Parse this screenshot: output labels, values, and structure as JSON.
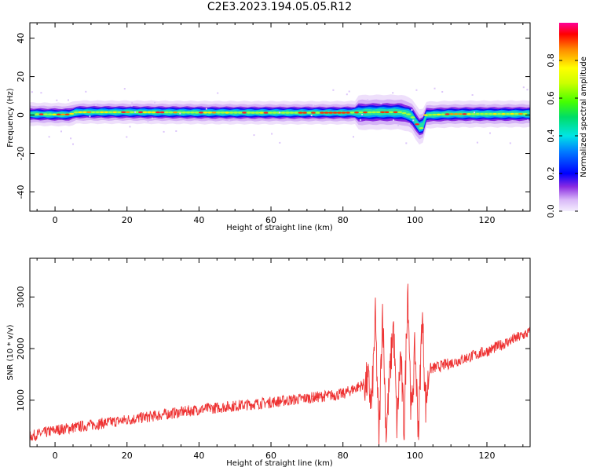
{
  "title": "C2E3.2023.194.05.05.R12",
  "chart_data": [
    {
      "type": "heatmap",
      "xlabel": "Height of straight line (km)",
      "ylabel": "Frequency (Hz)",
      "xlim": [
        -7,
        132
      ],
      "ylim": [
        -50,
        48
      ],
      "xticks": [
        0,
        20,
        40,
        60,
        80,
        100,
        120
      ],
      "yticks": [
        -40,
        -20,
        0,
        20,
        40
      ],
      "band_center_hz": [
        [
          -7,
          0.5
        ],
        [
          0,
          0.3
        ],
        [
          4,
          0.3
        ],
        [
          6,
          1.5
        ],
        [
          20,
          1.5
        ],
        [
          40,
          1.3
        ],
        [
          60,
          1.2
        ],
        [
          80,
          1.2
        ],
        [
          90,
          1.5
        ],
        [
          96,
          1.5
        ],
        [
          99,
          0
        ],
        [
          100,
          -3
        ],
        [
          101,
          -6
        ],
        [
          102,
          -7
        ],
        [
          103,
          0
        ],
        [
          110,
          0.5
        ],
        [
          132,
          0.6
        ]
      ],
      "colorbar": {
        "label": "Normalized spectral amplitude",
        "range": [
          0,
          1
        ],
        "ticks": [
          "0.0",
          "0.2",
          "0.4",
          "0.6",
          "0.8"
        ]
      }
    },
    {
      "type": "line",
      "xlabel": "Height of straight line (km)",
      "ylabel": "SNR (10 * v/v)",
      "xlim": [
        -7,
        132
      ],
      "ylim": [
        100,
        3750
      ],
      "xticks": [
        0,
        20,
        40,
        60,
        80,
        100,
        120
      ],
      "yticks": [
        1000,
        2000,
        3000
      ],
      "color": "#ee3333",
      "trend": [
        [
          -7,
          300
        ],
        [
          0,
          420
        ],
        [
          20,
          620
        ],
        [
          40,
          820
        ],
        [
          60,
          960
        ],
        [
          80,
          1120
        ],
        [
          87,
          1350
        ],
        [
          88,
          900
        ],
        [
          89,
          2600
        ],
        [
          90,
          200
        ],
        [
          91,
          2800
        ],
        [
          92,
          350
        ],
        [
          94,
          2500
        ],
        [
          95,
          500
        ],
        [
          96,
          1900
        ],
        [
          97,
          400
        ],
        [
          98,
          3300
        ],
        [
          99,
          600
        ],
        [
          100,
          2000
        ],
        [
          101,
          400
        ],
        [
          102,
          2700
        ],
        [
          103,
          900
        ],
        [
          104,
          1600
        ],
        [
          110,
          1720
        ],
        [
          120,
          1950
        ],
        [
          132,
          2320
        ]
      ]
    }
  ]
}
